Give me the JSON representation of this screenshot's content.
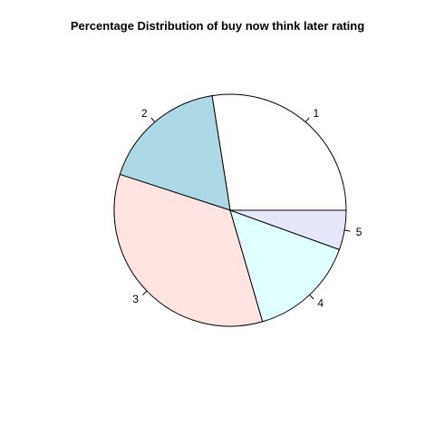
{
  "chart_data": {
    "type": "pie",
    "title": "Percentage Distribution of buy now think later rating",
    "categories": [
      "1",
      "2",
      "3",
      "4",
      "5"
    ],
    "values": [
      27.5,
      17.5,
      34.5,
      15.0,
      5.5
    ],
    "colors": [
      "#ffffff",
      "#add8e6",
      "#ffe4e1",
      "#e0ffff",
      "#e6e6fa"
    ],
    "start_angle_deg": 0,
    "direction": "counterclockwise",
    "legend": "none"
  }
}
